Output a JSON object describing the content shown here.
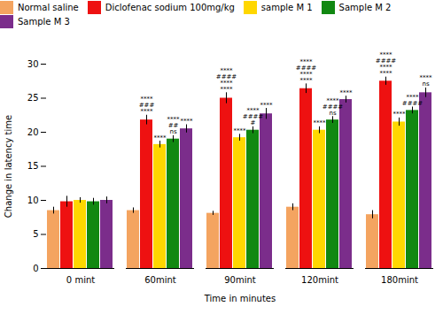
{
  "chart_data": {
    "type": "bar",
    "xlabel": "Time in minutes",
    "ylabel": "Change in latency time",
    "categories": [
      "0 mint",
      "60mint",
      "90mint",
      "120mint",
      "180mint"
    ],
    "series": [
      {
        "name": "Normal saline",
        "color": "#F4A460",
        "values": [
          8.5,
          8.5,
          8.1,
          9.0,
          7.9
        ],
        "errors": [
          0.5,
          0.4,
          0.3,
          0.5,
          0.6
        ]
      },
      {
        "name": "Diclofenac sodium 100mg/kg",
        "color": "#EE1111",
        "values": [
          9.8,
          21.8,
          25.0,
          26.4,
          27.5
        ],
        "errors": [
          0.8,
          0.7,
          0.8,
          0.7,
          0.6
        ]
      },
      {
        "name": "sample M 1",
        "color": "#FFD700",
        "values": [
          10.0,
          18.2,
          19.2,
          20.3,
          21.5
        ],
        "errors": [
          0.4,
          0.5,
          0.5,
          0.5,
          0.6
        ]
      },
      {
        "name": "Sample M 2",
        "color": "#118811",
        "values": [
          9.8,
          19.0,
          20.3,
          21.8,
          23.2
        ],
        "errors": [
          0.5,
          0.5,
          0.5,
          0.5,
          0.5
        ]
      },
      {
        "name": "Sample M 3",
        "color": "#7B2D8B",
        "values": [
          10.0,
          20.5,
          22.7,
          24.8,
          25.8
        ],
        "errors": [
          0.5,
          0.6,
          0.8,
          0.5,
          0.7
        ]
      }
    ],
    "annotations": [
      {
        "category": "60mint",
        "series": "Diclofenac sodium 100mg/kg",
        "texts": [
          "****",
          "###",
          "****"
        ]
      },
      {
        "category": "60mint",
        "series": "sample M 1",
        "texts": [
          "****"
        ]
      },
      {
        "category": "60mint",
        "series": "Sample M 2",
        "texts": [
          "****",
          "##",
          "ns"
        ]
      },
      {
        "category": "60mint",
        "series": "Sample M 3",
        "texts": [
          "****"
        ]
      },
      {
        "category": "90mint",
        "series": "Diclofenac sodium 100mg/kg",
        "texts": [
          "****",
          "####",
          "****",
          "****"
        ]
      },
      {
        "category": "90mint",
        "series": "sample M 1",
        "texts": [
          "****"
        ]
      },
      {
        "category": "90mint",
        "series": "Sample M 2",
        "texts": [
          "****",
          "####",
          "#"
        ]
      },
      {
        "category": "90mint",
        "series": "Sample M 3",
        "texts": [
          "****"
        ]
      },
      {
        "category": "120mint",
        "series": "Diclofenac sodium 100mg/kg",
        "texts": [
          "****",
          "####",
          "****",
          "****"
        ]
      },
      {
        "category": "120mint",
        "series": "sample M 1",
        "texts": [
          "****"
        ]
      },
      {
        "category": "120mint",
        "series": "Sample M 2",
        "texts": [
          "****",
          "####",
          "ns"
        ]
      },
      {
        "category": "120mint",
        "series": "Sample M 3",
        "texts": [
          "****"
        ]
      },
      {
        "category": "180mint",
        "series": "Diclofenac sodium 100mg/kg",
        "texts": [
          "****",
          "####",
          "****",
          "****"
        ]
      },
      {
        "category": "180mint",
        "series": "sample M 1",
        "texts": [
          "****"
        ]
      },
      {
        "category": "180mint",
        "series": "Sample M 2",
        "texts": [
          "****",
          "####"
        ]
      },
      {
        "category": "180mint",
        "series": "Sample M 3",
        "texts": [
          "****",
          "ns"
        ]
      }
    ],
    "ylim": [
      0,
      30
    ],
    "yticks": [
      0,
      5,
      10,
      15,
      20,
      25,
      30
    ],
    "grid": false,
    "legend": "top"
  }
}
